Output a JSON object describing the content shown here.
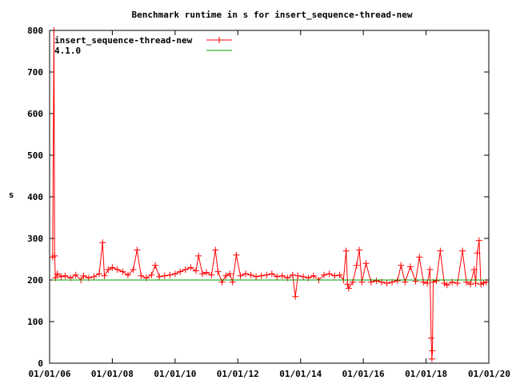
{
  "chart_data": {
    "type": "line",
    "title": "Benchmark runtime in s for insert_sequence-thread-new",
    "xlabel": "",
    "ylabel": "s",
    "x_axis_type": "date",
    "xlim": [
      "2006-01-01",
      "2020-01-01"
    ],
    "ylim": [
      0,
      800
    ],
    "x_tick_labels": [
      "01/01/06",
      "01/01/08",
      "01/01/10",
      "01/01/12",
      "01/01/14",
      "01/01/16",
      "01/01/18",
      "01/01/20"
    ],
    "x_ticks": [
      "2006-01-01",
      "2008-01-01",
      "2010-01-01",
      "2012-01-01",
      "2014-01-01",
      "2016-01-01",
      "2018-01-01",
      "2020-01-01"
    ],
    "y_ticks": [
      0,
      100,
      200,
      300,
      400,
      500,
      600,
      700,
      800
    ],
    "grid": false,
    "legend_position": "top-left",
    "series": [
      {
        "name": "insert_sequence-thread-new",
        "color": "#ff0000",
        "marker": "plus",
        "points": [
          [
            "2006-02-05",
            255
          ],
          [
            "2006-02-20",
            800
          ],
          [
            "2006-03-01",
            258
          ],
          [
            "2006-03-10",
            205
          ],
          [
            "2006-04-01",
            215
          ],
          [
            "2006-05-15",
            208
          ],
          [
            "2006-07-01",
            210
          ],
          [
            "2006-09-01",
            205
          ],
          [
            "2006-11-01",
            212
          ],
          [
            "2007-01-01",
            200
          ],
          [
            "2007-02-01",
            210
          ],
          [
            "2007-04-01",
            205
          ],
          [
            "2007-06-01",
            208
          ],
          [
            "2007-08-01",
            215
          ],
          [
            "2007-09-10",
            290
          ],
          [
            "2007-10-01",
            210
          ],
          [
            "2007-11-15",
            225
          ],
          [
            "2008-01-01",
            230
          ],
          [
            "2008-03-01",
            225
          ],
          [
            "2008-05-01",
            220
          ],
          [
            "2008-07-01",
            212
          ],
          [
            "2008-09-01",
            225
          ],
          [
            "2008-10-15",
            272
          ],
          [
            "2008-12-01",
            210
          ],
          [
            "2009-02-01",
            205
          ],
          [
            "2009-04-01",
            212
          ],
          [
            "2009-05-15",
            235
          ],
          [
            "2009-07-01",
            208
          ],
          [
            "2009-09-01",
            210
          ],
          [
            "2009-11-01",
            212
          ],
          [
            "2010-01-01",
            215
          ],
          [
            "2010-03-01",
            220
          ],
          [
            "2010-05-01",
            225
          ],
          [
            "2010-07-01",
            230
          ],
          [
            "2010-09-01",
            222
          ],
          [
            "2010-10-01",
            258
          ],
          [
            "2010-11-15",
            215
          ],
          [
            "2011-01-01",
            218
          ],
          [
            "2011-03-01",
            212
          ],
          [
            "2011-04-15",
            272
          ],
          [
            "2011-05-15",
            220
          ],
          [
            "2011-07-01",
            195
          ],
          [
            "2011-08-15",
            210
          ],
          [
            "2011-10-01",
            215
          ],
          [
            "2011-11-01",
            195
          ],
          [
            "2011-12-15",
            260
          ],
          [
            "2012-02-01",
            210
          ],
          [
            "2012-04-01",
            215
          ],
          [
            "2012-06-01",
            212
          ],
          [
            "2012-08-01",
            208
          ],
          [
            "2012-10-01",
            210
          ],
          [
            "2012-12-01",
            212
          ],
          [
            "2013-02-01",
            215
          ],
          [
            "2013-04-01",
            208
          ],
          [
            "2013-06-01",
            210
          ],
          [
            "2013-08-01",
            205
          ],
          [
            "2013-10-01",
            212
          ],
          [
            "2013-11-01",
            160
          ],
          [
            "2013-12-01",
            210
          ],
          [
            "2014-02-01",
            208
          ],
          [
            "2014-04-01",
            205
          ],
          [
            "2014-06-01",
            210
          ],
          [
            "2014-08-01",
            200
          ],
          [
            "2014-10-01",
            212
          ],
          [
            "2014-12-01",
            215
          ],
          [
            "2015-02-01",
            210
          ],
          [
            "2015-04-01",
            212
          ],
          [
            "2015-05-15",
            200
          ],
          [
            "2015-06-15",
            270
          ],
          [
            "2015-07-01",
            190
          ],
          [
            "2015-07-15",
            180
          ],
          [
            "2015-09-01",
            195
          ],
          [
            "2015-10-15",
            235
          ],
          [
            "2015-11-15",
            272
          ],
          [
            "2015-12-15",
            195
          ],
          [
            "2016-02-01",
            240
          ],
          [
            "2016-04-01",
            195
          ],
          [
            "2016-06-01",
            198
          ],
          [
            "2016-08-01",
            195
          ],
          [
            "2016-10-01",
            192
          ],
          [
            "2016-12-01",
            195
          ],
          [
            "2017-02-01",
            198
          ],
          [
            "2017-03-15",
            235
          ],
          [
            "2017-05-01",
            195
          ],
          [
            "2017-07-01",
            232
          ],
          [
            "2017-09-01",
            197
          ],
          [
            "2017-10-15",
            255
          ],
          [
            "2017-12-01",
            195
          ],
          [
            "2018-01-15",
            192
          ],
          [
            "2018-02-15",
            225
          ],
          [
            "2018-03-01",
            60
          ],
          [
            "2018-03-10",
            10
          ],
          [
            "2018-03-15",
            30
          ],
          [
            "2018-03-25",
            195
          ],
          [
            "2018-05-01",
            198
          ],
          [
            "2018-06-15",
            270
          ],
          [
            "2018-08-01",
            192
          ],
          [
            "2018-09-01",
            188
          ],
          [
            "2018-11-01",
            195
          ],
          [
            "2019-01-01",
            192
          ],
          [
            "2019-03-01",
            270
          ],
          [
            "2019-04-15",
            195
          ],
          [
            "2019-06-01",
            190
          ],
          [
            "2019-07-15",
            225
          ],
          [
            "2019-08-01",
            192
          ],
          [
            "2019-08-20",
            265
          ],
          [
            "2019-09-10",
            295
          ],
          [
            "2019-10-01",
            190
          ],
          [
            "2019-11-01",
            193
          ],
          [
            "2019-12-01",
            195
          ]
        ]
      },
      {
        "name": "4.1.0",
        "color": "#00a000",
        "marker": "none",
        "points": [
          [
            "2006-02-01",
            200
          ],
          [
            "2019-12-01",
            200
          ]
        ]
      }
    ]
  }
}
